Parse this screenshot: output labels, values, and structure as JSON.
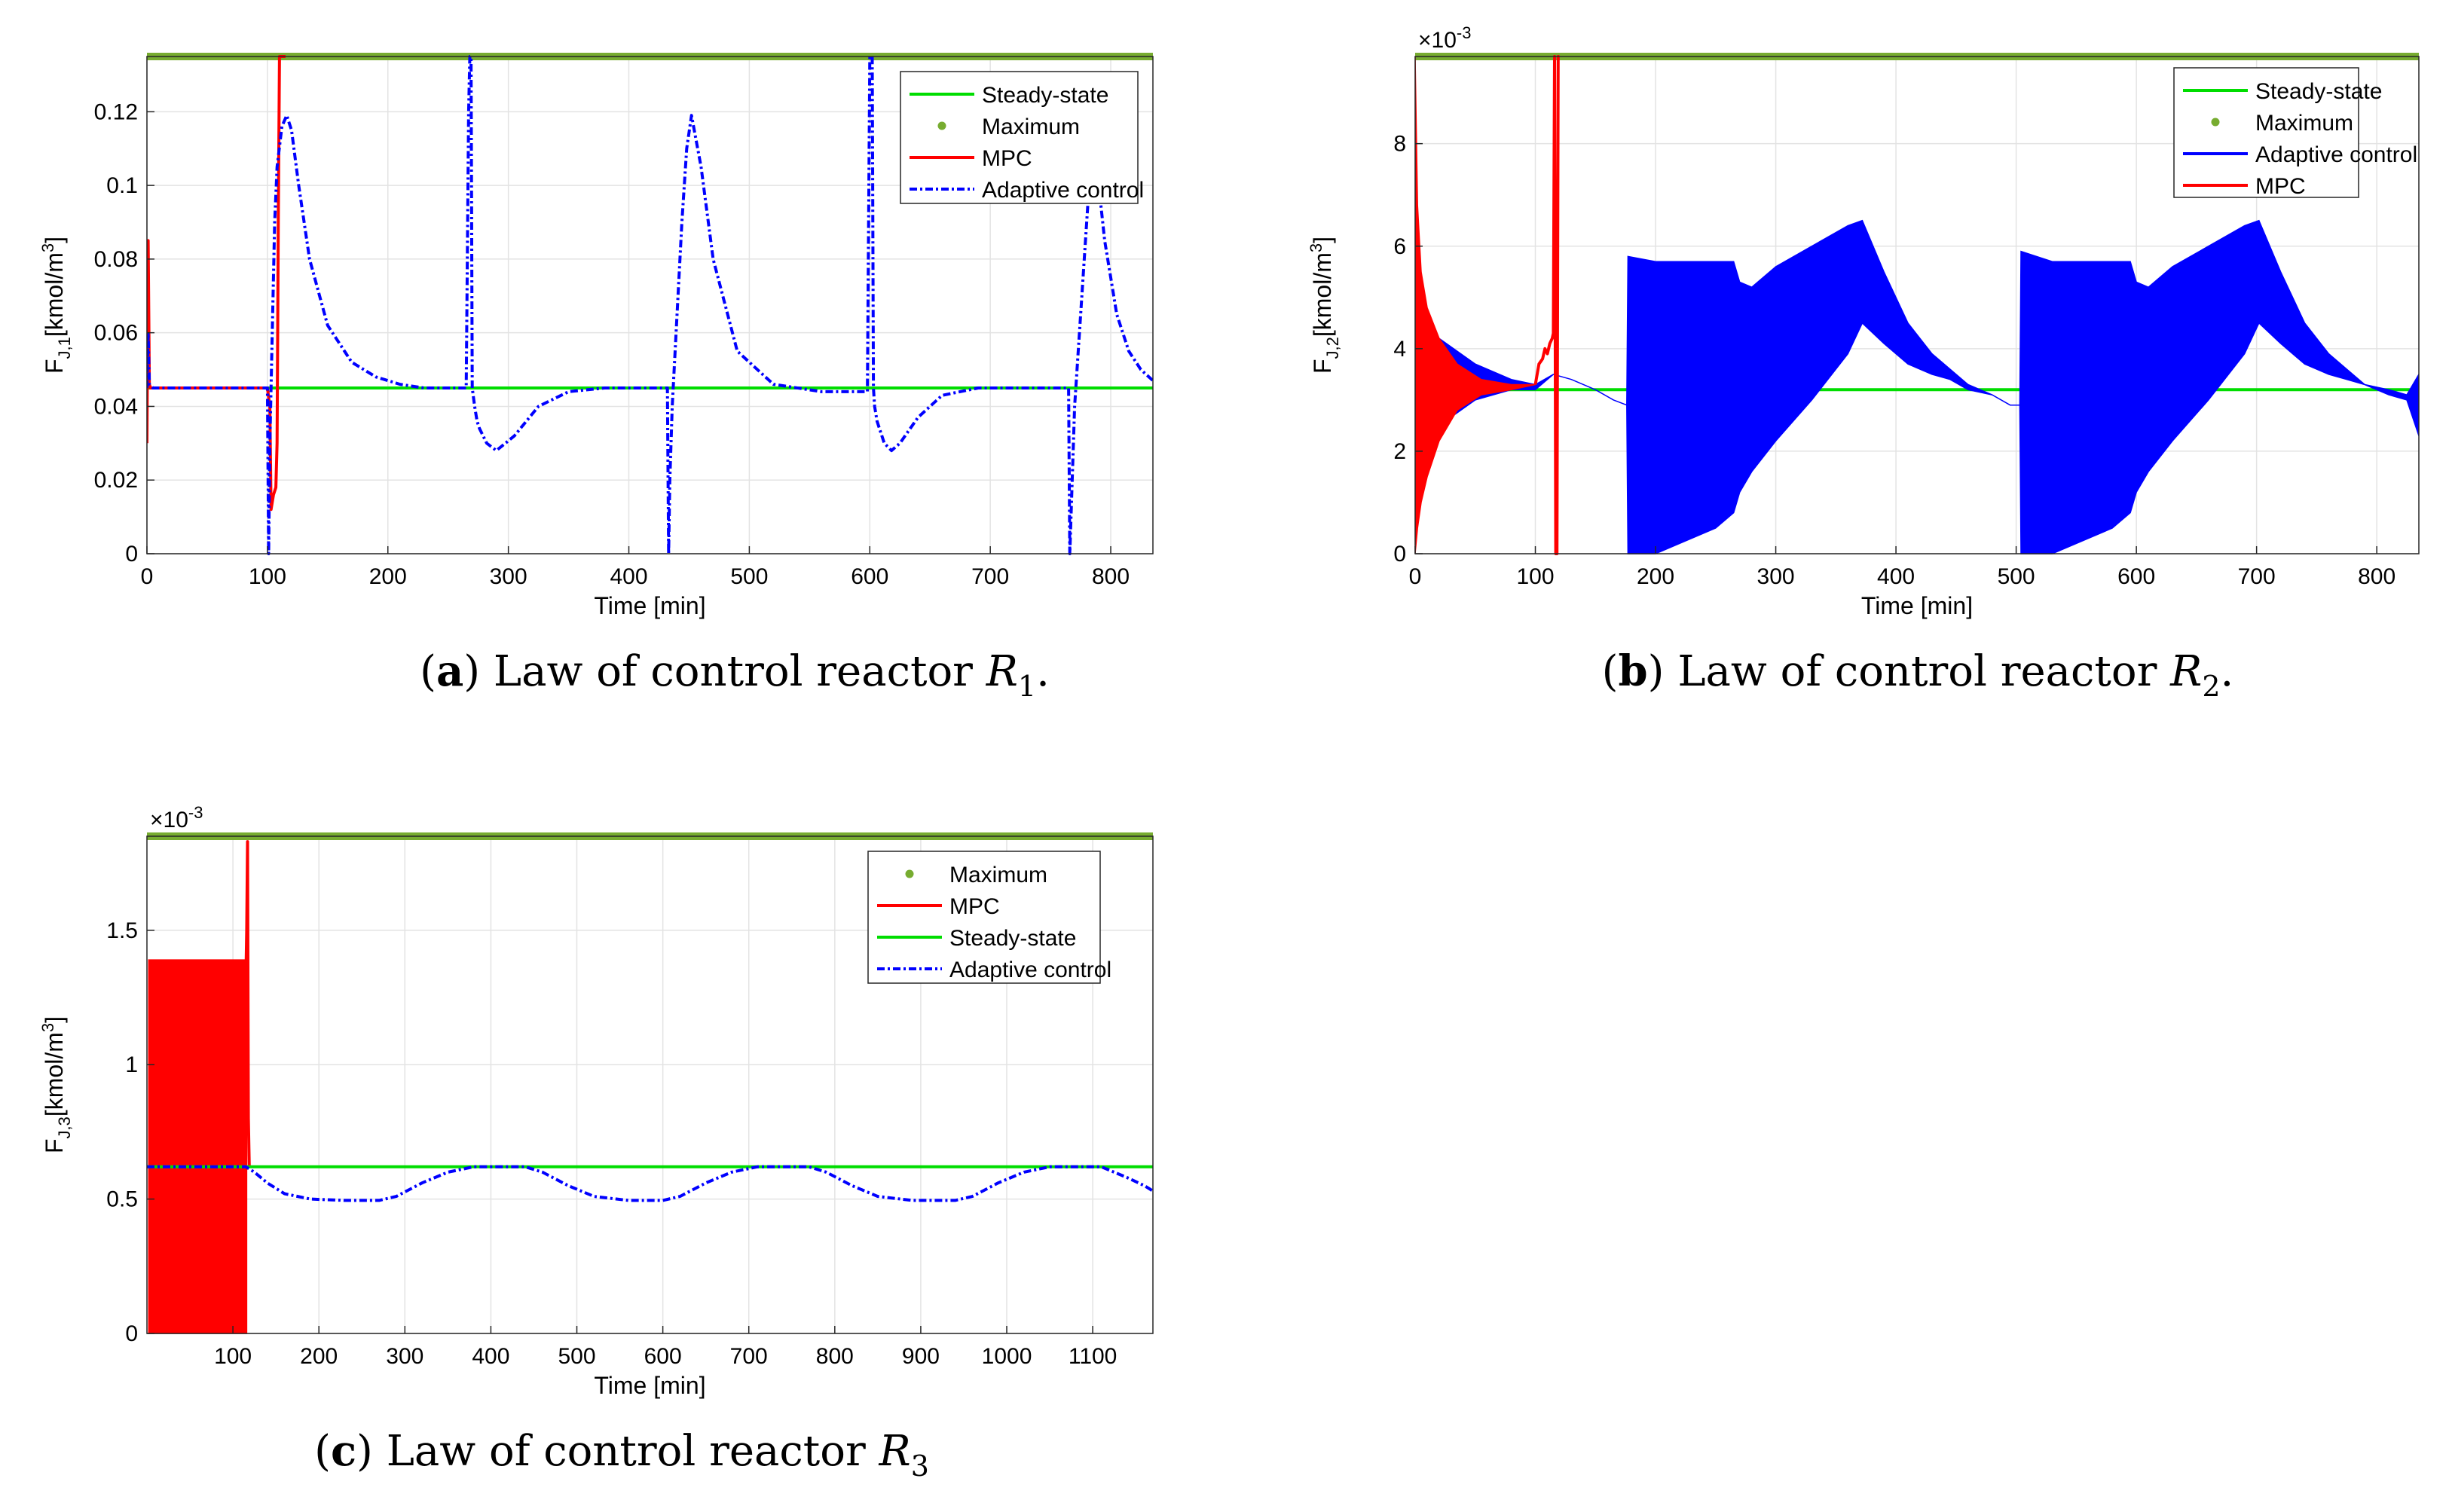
{
  "chart_data": [
    {
      "id": "a",
      "type": "line",
      "caption": {
        "letter": "a",
        "text": "Law of control reactor",
        "var": "R",
        "sub": "1",
        "end": "."
      },
      "xlabel": "Time [min]",
      "ylabel": {
        "main": "F",
        "sub": "J,1",
        "unit": "[kmol/m",
        "sup": "3",
        "close": "]"
      },
      "xlim": [
        0,
        835
      ],
      "ylim": [
        0,
        0.135
      ],
      "xticks": [
        0,
        100,
        200,
        300,
        400,
        500,
        600,
        700,
        800
      ],
      "yticks": [
        0,
        0.02,
        0.04,
        0.06,
        0.08,
        0.1,
        0.12
      ],
      "ytick_labels": [
        "0",
        "0.02",
        "0.04",
        "0.06",
        "0.08",
        "0.1",
        "0.12"
      ],
      "grid": true,
      "legend_position": "top-right",
      "legend": [
        "Steady-state",
        "Maximum",
        "MPC",
        "Adaptive control"
      ],
      "series": [
        {
          "name": "Steady-state",
          "kind": "line",
          "color": "#00dd00",
          "x": [
            0,
            835
          ],
          "y": [
            0.045,
            0.045
          ]
        },
        {
          "name": "Maximum",
          "kind": "dots",
          "color": "#77ac30",
          "x": [
            0,
            835
          ],
          "y": [
            0.135,
            0.135
          ]
        },
        {
          "name": "MPC",
          "kind": "line",
          "color": "#ff0000",
          "x": [
            0,
            1,
            2,
            3,
            5,
            100,
            102,
            103,
            104,
            105,
            106,
            107,
            108,
            109,
            110,
            111,
            115
          ],
          "y": [
            0.03,
            0.085,
            0.046,
            0.045,
            0.045,
            0.045,
            0.04,
            0.012,
            0.014,
            0.016,
            0.017,
            0.018,
            0.03,
            0.09,
            0.135,
            0.135,
            0.135
          ]
        },
        {
          "name": "Adaptive control",
          "kind": "dashdot",
          "color": "#0000ff",
          "x": [
            0,
            1,
            2,
            5,
            100,
            101,
            102,
            104,
            106,
            108,
            112,
            116,
            120,
            126,
            135,
            150,
            170,
            190,
            210,
            230,
            250,
            265,
            267,
            268,
            269,
            270,
            272,
            274,
            276,
            282,
            290,
            305,
            325,
            350,
            380,
            410,
            432,
            433,
            434,
            436,
            440,
            444,
            448,
            452,
            460,
            470,
            490,
            520,
            560,
            598,
            600,
            601,
            602,
            603,
            604,
            606,
            608,
            612,
            618,
            625,
            640,
            660,
            690,
            720,
            760,
            765,
            766,
            767,
            768,
            770,
            774,
            778,
            782,
            786,
            790,
            795,
            805,
            815,
            825,
            835
          ],
          "y": [
            0.045,
            0.06,
            0.046,
            0.045,
            0.045,
            0,
            0.03,
            0.06,
            0.09,
            0.105,
            0.116,
            0.119,
            0.115,
            0.1,
            0.08,
            0.062,
            0.052,
            0.048,
            0.046,
            0.045,
            0.045,
            0.045,
            0.12,
            0.135,
            0.135,
            0.045,
            0.04,
            0.036,
            0.034,
            0.03,
            0.028,
            0.032,
            0.04,
            0.044,
            0.045,
            0.045,
            0.045,
            0,
            0.02,
            0.04,
            0.065,
            0.09,
            0.11,
            0.119,
            0.105,
            0.08,
            0.055,
            0.046,
            0.044,
            0.044,
            0.135,
            0.135,
            0.135,
            0.045,
            0.04,
            0.036,
            0.034,
            0.03,
            0.028,
            0.03,
            0.037,
            0.043,
            0.045,
            0.045,
            0.045,
            0.045,
            0,
            0.01,
            0.02,
            0.04,
            0.06,
            0.08,
            0.1,
            0.112,
            0.1,
            0.085,
            0.065,
            0.055,
            0.05,
            0.047
          ]
        }
      ]
    },
    {
      "id": "b",
      "type": "line",
      "caption": {
        "letter": "b",
        "text": "Law of control reactor",
        "var": "R",
        "sub": "2",
        "end": "."
      },
      "xlabel": "Time [min]",
      "ylabel": {
        "main": "F",
        "sub": "J,2",
        "unit": "[kmol/m",
        "sup": "3",
        "close": "]"
      },
      "xlim": [
        0,
        835
      ],
      "ylim": [
        0,
        0.0097
      ],
      "exponent_label": {
        "base": "×10",
        "exp": "-3"
      },
      "xticks": [
        0,
        100,
        200,
        300,
        400,
        500,
        600,
        700,
        800
      ],
      "yticks": [
        0,
        0.002,
        0.004,
        0.006,
        0.008
      ],
      "ytick_labels": [
        "0",
        "2",
        "4",
        "6",
        "8"
      ],
      "grid": true,
      "legend_position": "top-right",
      "legend": [
        "Steady-state",
        "Maximum",
        "Adaptive control",
        "MPC"
      ],
      "series": [
        {
          "name": "Steady-state",
          "kind": "line",
          "color": "#00dd00",
          "x": [
            0,
            835
          ],
          "y": [
            0.0032,
            0.0032
          ]
        },
        {
          "name": "Maximum",
          "kind": "dots",
          "color": "#77ac30",
          "x": [
            0,
            835
          ],
          "y": [
            0.0097,
            0.0097
          ]
        },
        {
          "name": "Adaptive control",
          "kind": "band",
          "color": "#0000ff",
          "x": [
            0,
            20,
            50,
            80,
            100,
            115,
            130,
            150,
            165,
            176,
            177,
            200,
            250,
            265,
            270,
            280,
            300,
            330,
            360,
            372,
            390,
            410,
            430,
            445,
            460,
            480,
            495,
            503,
            504,
            530,
            580,
            595,
            600,
            610,
            630,
            660,
            690,
            702,
            720,
            740,
            760,
            775,
            790,
            810,
            825,
            835
          ],
          "upper": [
            0.0045,
            0.0042,
            0.0037,
            0.0034,
            0.0033,
            0.0035,
            0.0034,
            0.0032,
            0.003,
            0.0029,
            0.0058,
            0.0057,
            0.0057,
            0.0057,
            0.0053,
            0.0052,
            0.0056,
            0.006,
            0.0064,
            0.0065,
            0.0055,
            0.0045,
            0.0039,
            0.0036,
            0.0033,
            0.0031,
            0.0029,
            0.0029,
            0.0059,
            0.0057,
            0.0057,
            0.0057,
            0.0053,
            0.0052,
            0.0056,
            0.006,
            0.0064,
            0.0065,
            0.0055,
            0.0045,
            0.0039,
            0.0036,
            0.0033,
            0.0032,
            0.0031,
            0.0035
          ],
          "lower": [
            0.002,
            0.0025,
            0.003,
            0.0032,
            0.0032,
            0.0035,
            0.0034,
            0.0032,
            0.003,
            0.0029,
            0,
            0,
            0.0005,
            0.0008,
            0.0012,
            0.0016,
            0.0022,
            0.003,
            0.0039,
            0.0045,
            0.0041,
            0.0037,
            0.0035,
            0.0034,
            0.0032,
            0.0031,
            0.0029,
            0.0029,
            0,
            0,
            0.0005,
            0.0008,
            0.0012,
            0.0016,
            0.0022,
            0.003,
            0.0039,
            0.0045,
            0.0041,
            0.0037,
            0.0035,
            0.0034,
            0.0033,
            0.0031,
            0.003,
            0.0023
          ]
        },
        {
          "name": "MPC",
          "kind": "band",
          "color": "#ff0000",
          "x": [
            0,
            2,
            5,
            10,
            20,
            35,
            55,
            80,
            100
          ],
          "upper": [
            0.0097,
            0.0068,
            0.0055,
            0.0048,
            0.0042,
            0.0037,
            0.0034,
            0.0033,
            0.0033
          ],
          "lower": [
            0,
            0.0005,
            0.001,
            0.0015,
            0.0022,
            0.0028,
            0.0031,
            0.0032,
            0.0033
          ]
        },
        {
          "name": "MPC",
          "kind": "line",
          "color": "#ff0000",
          "x": [
            100,
            103,
            106,
            108,
            110,
            112,
            114,
            115,
            116,
            117,
            118,
            119,
            120
          ],
          "y": [
            0.0033,
            0.0037,
            0.0038,
            0.004,
            0.0039,
            0.0041,
            0.0042,
            0.0043,
            0.0097,
            0,
            0,
            0.0097,
            0.0097
          ]
        }
      ]
    },
    {
      "id": "c",
      "type": "line",
      "caption": {
        "letter": "c",
        "text": "Law of control reactor",
        "var": "R",
        "sub": "3",
        "end": ""
      },
      "xlabel": "Time [min]",
      "ylabel": {
        "main": "F",
        "sub": "J,3",
        "unit": "[kmol/m",
        "sup": "3",
        "close": "]"
      },
      "xlim": [
        0,
        1170
      ],
      "ylim": [
        0,
        0.00185
      ],
      "exponent_label": {
        "base": "×10",
        "exp": "-3"
      },
      "xticks": [
        100,
        200,
        300,
        400,
        500,
        600,
        700,
        800,
        900,
        1000,
        1100
      ],
      "yticks": [
        0,
        0.0005,
        0.001,
        0.0015
      ],
      "ytick_labels": [
        "0",
        "0.5",
        "1",
        "1.5"
      ],
      "grid": true,
      "legend_position": "top-right",
      "legend": [
        "Maximum",
        "MPC",
        "Steady-state",
        "Adaptive control"
      ],
      "series": [
        {
          "name": "Maximum",
          "kind": "dots",
          "color": "#77ac30",
          "x": [
            0,
            1170
          ],
          "y": [
            0.00185,
            0.00185
          ]
        },
        {
          "name": "MPC",
          "kind": "band",
          "color": "#ff0000",
          "x": [
            2,
            50,
            100,
            112,
            113,
            116
          ],
          "upper": [
            0.00139,
            0.00139,
            0.00139,
            0.00139,
            0.00139,
            0.00139
          ],
          "lower": [
            0,
            0,
            0,
            0,
            0,
            0
          ]
        },
        {
          "name": "MPC",
          "kind": "line",
          "color": "#ff0000",
          "x": [
            114,
            115,
            116,
            117,
            118,
            119
          ],
          "y": [
            0,
            0.0013,
            0.0015,
            0.00183,
            0.0008,
            0.00062
          ]
        },
        {
          "name": "Steady-state",
          "kind": "line",
          "color": "#00dd00",
          "x": [
            0,
            1170
          ],
          "y": [
            0.00062,
            0.00062
          ]
        },
        {
          "name": "Adaptive control",
          "kind": "dashdot",
          "color": "#0000ff",
          "x": [
            0,
            60,
            115,
            125,
            140,
            160,
            190,
            230,
            270,
            290,
            320,
            350,
            380,
            410,
            440,
            460,
            490,
            520,
            560,
            600,
            620,
            650,
            680,
            710,
            740,
            770,
            790,
            820,
            850,
            890,
            940,
            960,
            990,
            1020,
            1050,
            1080,
            1110,
            1140,
            1160,
            1170
          ],
          "y": [
            0.00062,
            0.00062,
            0.00062,
            0.0006,
            0.00056,
            0.00052,
            0.0005,
            0.000495,
            0.000495,
            0.00051,
            0.00056,
            0.0006,
            0.00062,
            0.00062,
            0.00062,
            0.0006,
            0.00055,
            0.00051,
            0.000495,
            0.000495,
            0.00051,
            0.00056,
            0.0006,
            0.00062,
            0.00062,
            0.00062,
            0.0006,
            0.00055,
            0.00051,
            0.000495,
            0.000495,
            0.00051,
            0.00056,
            0.0006,
            0.00062,
            0.00062,
            0.00062,
            0.00058,
            0.00055,
            0.00053
          ]
        }
      ]
    }
  ]
}
